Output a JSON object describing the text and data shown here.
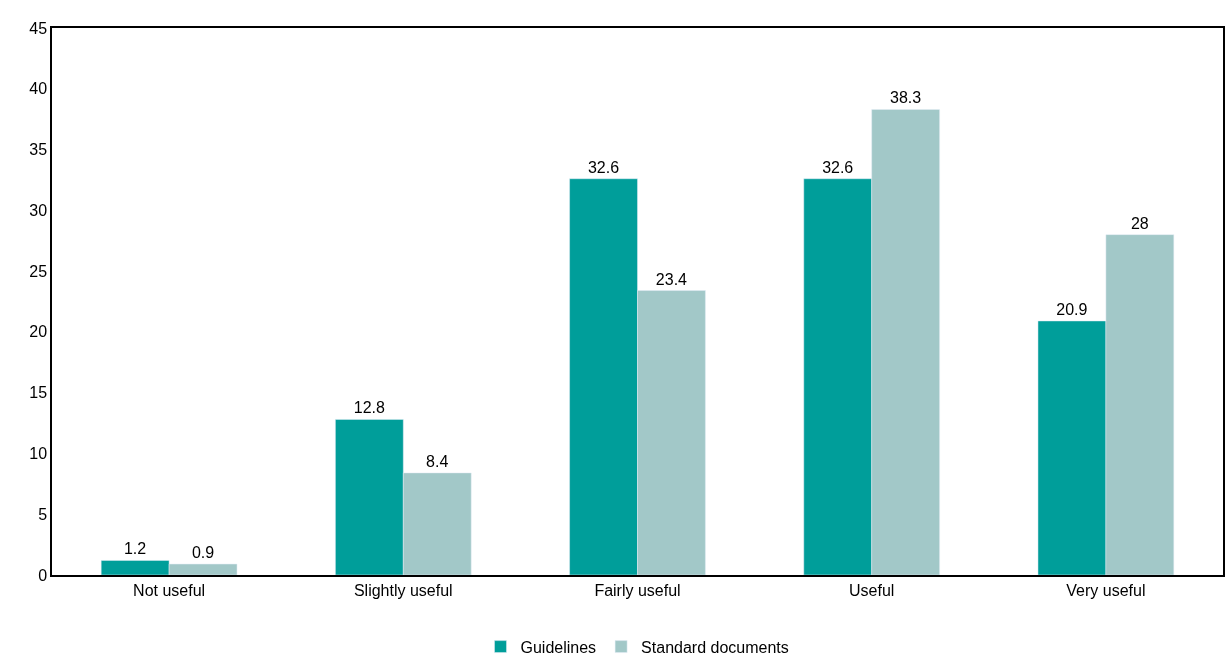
{
  "chart_data": {
    "type": "bar",
    "categories": [
      "Not useful",
      "Slightly useful",
      "Fairly useful",
      "Useful",
      "Very useful"
    ],
    "series": [
      {
        "name": "Guidelines",
        "color": "#009e9a",
        "values": [
          1.2,
          12.8,
          32.6,
          32.6,
          20.9
        ]
      },
      {
        "name": "Standard documents",
        "color": "#a2c8c8",
        "values": [
          0.9,
          8.4,
          23.4,
          38.3,
          28
        ]
      }
    ],
    "ylim": [
      0,
      45
    ],
    "yticks": [
      0,
      5,
      10,
      15,
      20,
      25,
      30,
      35,
      40,
      45
    ],
    "grid": false,
    "legend": "bottom",
    "data_labels": true
  }
}
